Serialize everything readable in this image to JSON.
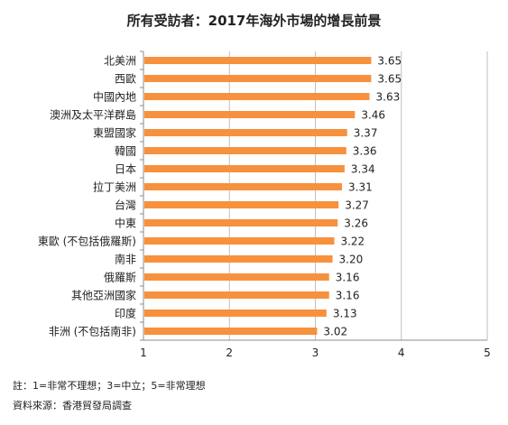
{
  "chart_data": {
    "type": "bar",
    "orientation": "horizontal",
    "title": "所有受訪者：2017年海外市場的增長前景",
    "categories": [
      "北美洲",
      "西歐",
      "中國內地",
      "澳洲及太平洋群島",
      "東盟國家",
      "韓國",
      "日本",
      "拉丁美洲",
      "台灣",
      "中東",
      "東歐 (不包括俄羅斯)",
      "南非",
      "俄羅斯",
      "其他亞洲國家",
      "印度",
      "非洲 (不包括南非)"
    ],
    "values": [
      3.65,
      3.65,
      3.63,
      3.46,
      3.37,
      3.36,
      3.34,
      3.31,
      3.27,
      3.26,
      3.22,
      3.2,
      3.16,
      3.16,
      3.13,
      3.02
    ],
    "value_labels": [
      "3.65",
      "3.65",
      "3.63",
      "3.46",
      "3.37",
      "3.36",
      "3.34",
      "3.31",
      "3.27",
      "3.26",
      "3.22",
      "3.20",
      "3.16",
      "3.16",
      "3.13",
      "3.02"
    ],
    "xlim": [
      1,
      5
    ],
    "xticks": [
      "1",
      "2",
      "3",
      "4",
      "5"
    ],
    "grid": true,
    "bar_color": "#F7913D"
  },
  "notes": {
    "note": "註：1=非常不理想；3=中立；5=非常理想",
    "source": "資料來源：香港貿發局調查"
  }
}
